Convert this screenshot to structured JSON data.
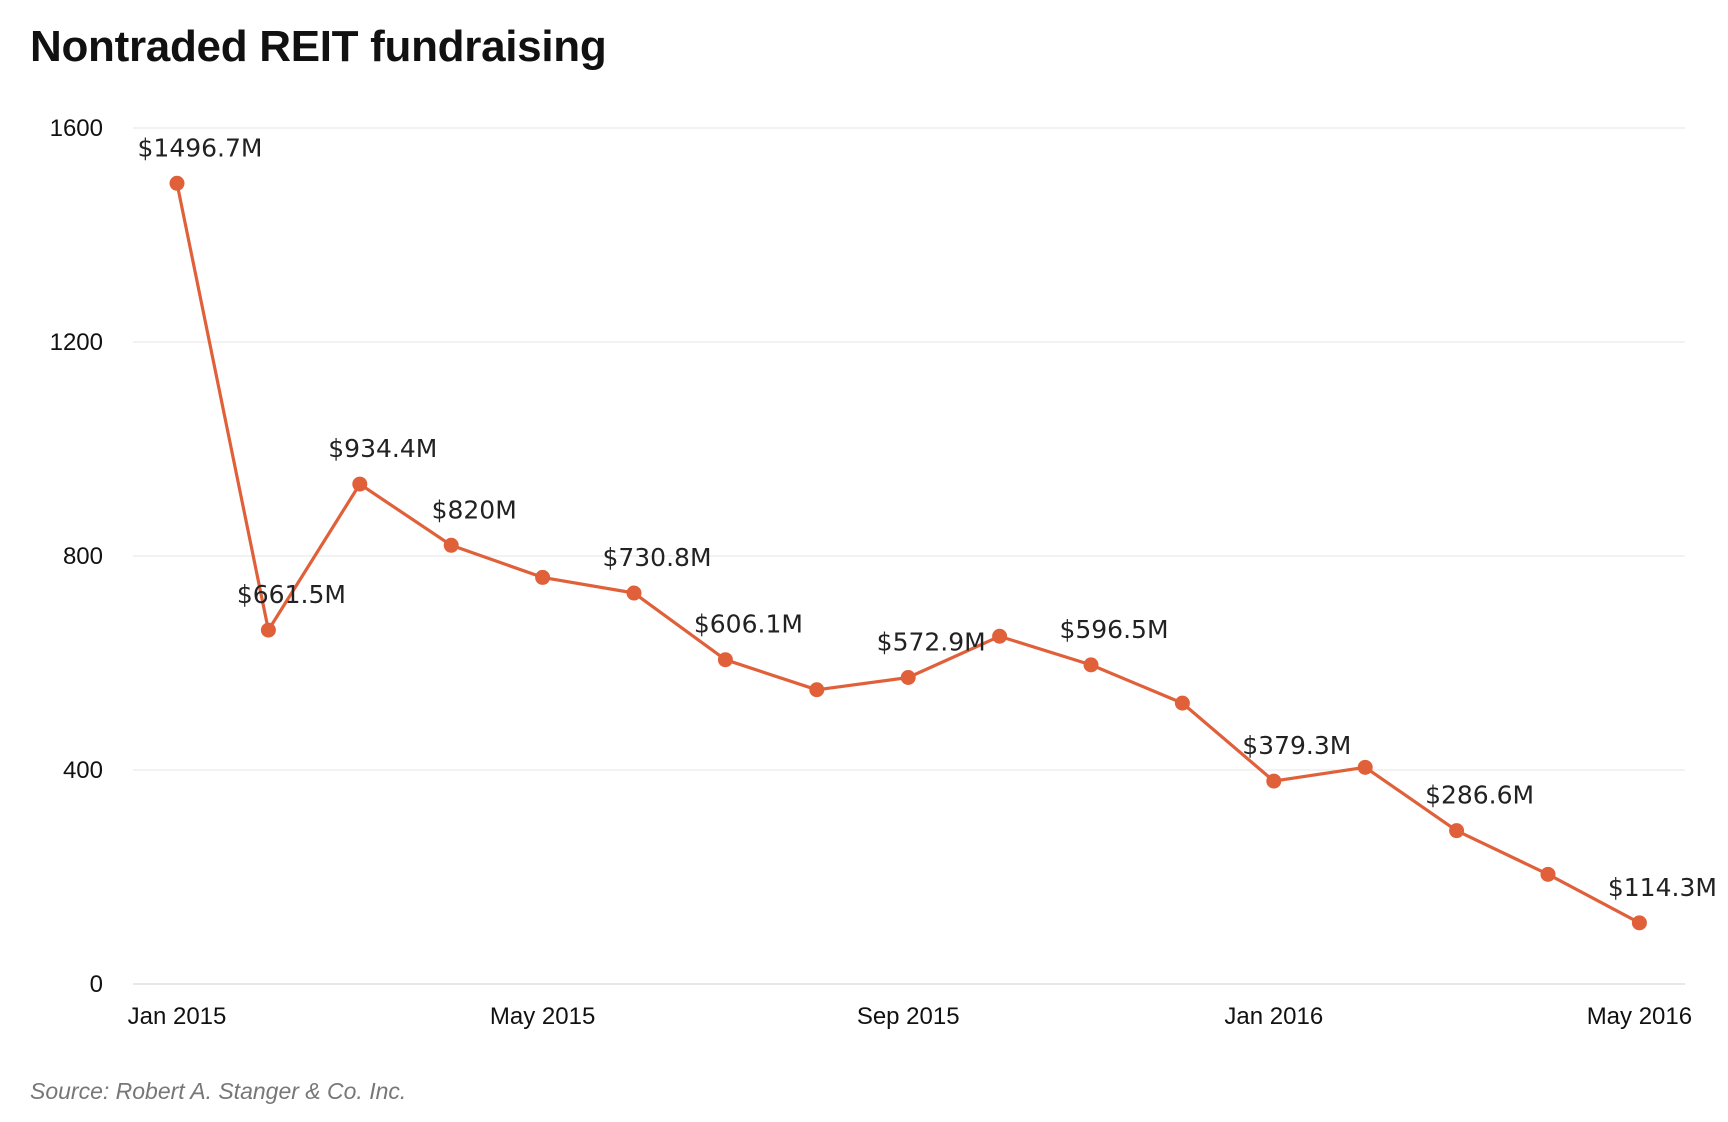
{
  "chart_data": {
    "type": "line",
    "title": "Nontraded REIT fundraising",
    "source": "Source: Robert A. Stanger & Co. Inc.",
    "xlabel": "",
    "ylabel": "",
    "ylim": [
      0,
      1600
    ],
    "y_ticks": [
      0,
      400,
      800,
      1200,
      1600
    ],
    "x_ticks": [
      {
        "month_index": 0,
        "label": "Jan 2015"
      },
      {
        "month_index": 4,
        "label": "May 2015"
      },
      {
        "month_index": 8,
        "label": "Sep 2015"
      },
      {
        "month_index": 12,
        "label": "Jan 2016"
      },
      {
        "month_index": 16,
        "label": "May 2016"
      }
    ],
    "grid": true,
    "line_color": "#e0603a",
    "grid_color": "#e4e4e4",
    "series": [
      {
        "points": [
          {
            "x": "Jan 2015",
            "y": 1496.7,
            "label": "$1496.7M"
          },
          {
            "x": "Feb 2015",
            "y": 661.5,
            "label": "$661.5M"
          },
          {
            "x": "Mar 2015",
            "y": 934.4,
            "label": "$934.4M"
          },
          {
            "x": "Apr 2015",
            "y": 820,
            "label": "$820M"
          },
          {
            "x": "May 2015",
            "y": 760,
            "label": ""
          },
          {
            "x": "Jun 2015",
            "y": 730.8,
            "label": "$730.8M"
          },
          {
            "x": "Jul 2015",
            "y": 606.1,
            "label": "$606.1M"
          },
          {
            "x": "Aug 2015",
            "y": 550,
            "label": ""
          },
          {
            "x": "Sep 2015",
            "y": 572.9,
            "label": "$572.9M"
          },
          {
            "x": "Oct 2015",
            "y": 650,
            "label": ""
          },
          {
            "x": "Nov 2015",
            "y": 596.5,
            "label": "$596.5M"
          },
          {
            "x": "Dec 2015",
            "y": 525,
            "label": ""
          },
          {
            "x": "Jan 2016",
            "y": 379.3,
            "label": "$379.3M"
          },
          {
            "x": "Feb 2016",
            "y": 405,
            "label": ""
          },
          {
            "x": "Mar 2016",
            "y": 286.6,
            "label": "$286.6M"
          },
          {
            "x": "Apr 2016",
            "y": 205,
            "label": ""
          },
          {
            "x": "May 2016",
            "y": 114.3,
            "label": "$114.3M"
          }
        ]
      }
    ]
  }
}
